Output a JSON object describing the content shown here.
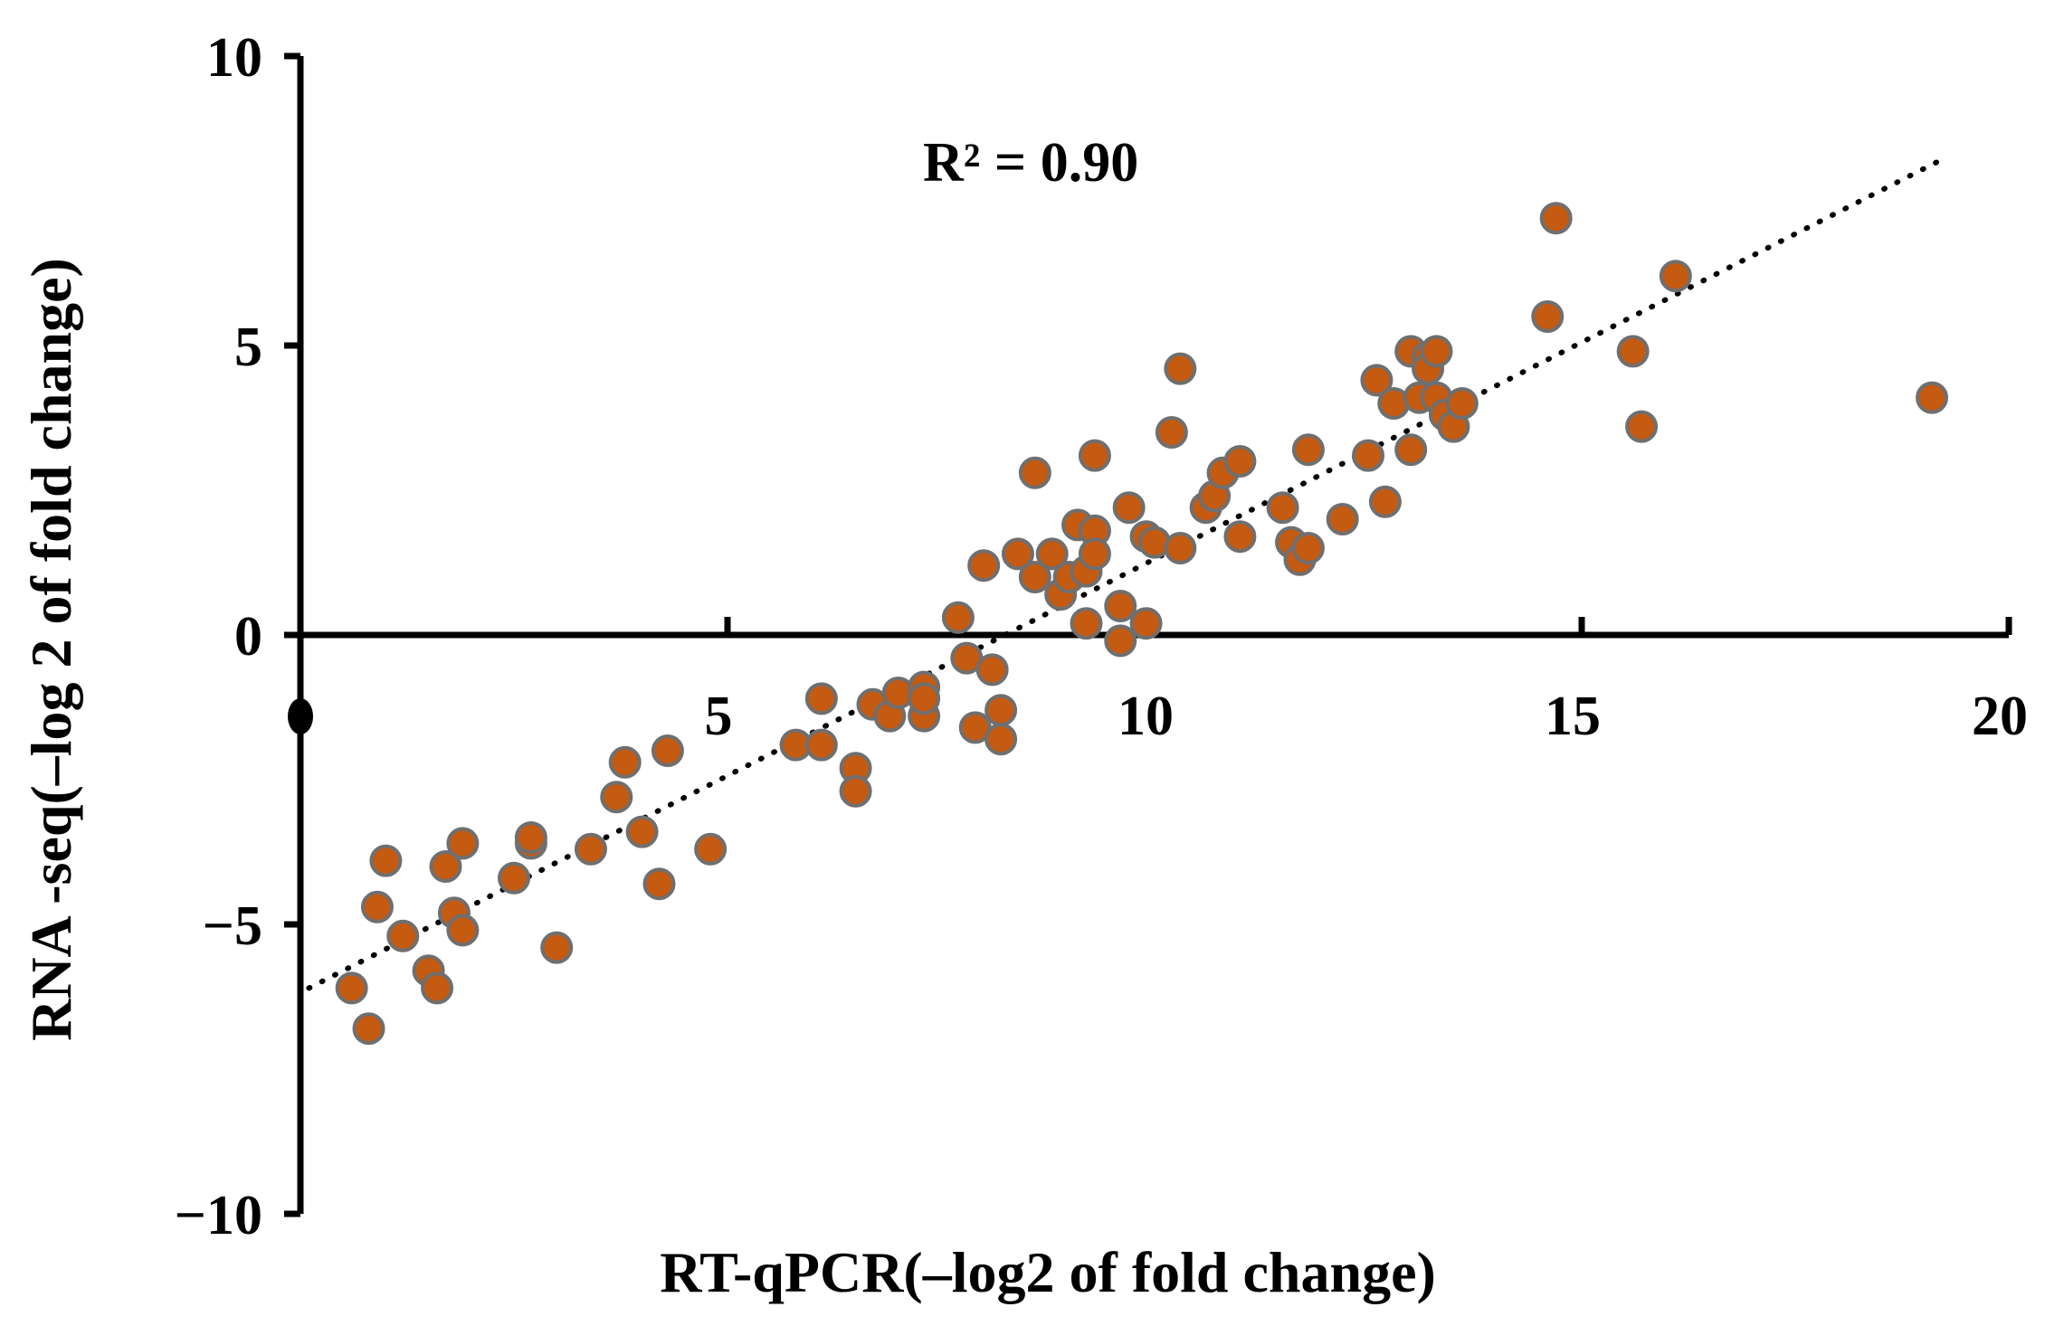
{
  "chart_data": {
    "type": "scatter",
    "xlabel": "RT-qPCR(–log2 of fold change)",
    "ylabel": "RNA -seq(–log 2 of fold change)",
    "xlim": [
      0,
      20
    ],
    "ylim": [
      -10,
      10
    ],
    "x_ticks": [
      5,
      10,
      15,
      20
    ],
    "x_tick_labels": [
      "5",
      "10",
      "15",
      "20"
    ],
    "y_ticks": [
      10,
      5,
      0,
      -5,
      -10
    ],
    "y_tick_labels": [
      "10",
      "5",
      "0",
      "−5",
      "−10"
    ],
    "annotation": "R² = 0.90",
    "grid": false,
    "marker_color": "#c55a11",
    "marker_edge": "#6f6f6f",
    "trendline": {
      "style": "dotted",
      "color": "#000000",
      "x": [
        0.1,
        19.2
      ],
      "y": [
        -6.1,
        8.2
      ]
    },
    "series": [
      {
        "points": [
          [
            0.6,
            -6.1
          ],
          [
            0.8,
            -6.8
          ],
          [
            0.9,
            -4.7
          ],
          [
            1.0,
            -3.9
          ],
          [
            1.2,
            -5.2
          ],
          [
            1.5,
            -5.8
          ],
          [
            1.6,
            -6.1
          ],
          [
            1.7,
            -4.0
          ],
          [
            1.8,
            -4.8
          ],
          [
            1.9,
            -5.1
          ],
          [
            1.9,
            -3.6
          ],
          [
            2.5,
            -4.2
          ],
          [
            2.7,
            -3.6
          ],
          [
            2.7,
            -3.5
          ],
          [
            3.0,
            -5.4
          ],
          [
            3.4,
            -3.7
          ],
          [
            3.7,
            -2.8
          ],
          [
            3.8,
            -2.2
          ],
          [
            4.0,
            -3.4
          ],
          [
            4.2,
            -4.3
          ],
          [
            4.3,
            -2.0
          ],
          [
            4.8,
            -3.7
          ],
          [
            5.8,
            -1.9
          ],
          [
            6.1,
            -1.9
          ],
          [
            6.1,
            -1.1
          ],
          [
            6.5,
            -2.3
          ],
          [
            6.5,
            -2.7
          ],
          [
            6.7,
            -1.2
          ],
          [
            6.9,
            -1.4
          ],
          [
            7.0,
            -1.0
          ],
          [
            7.3,
            -0.9
          ],
          [
            7.3,
            -1.4
          ],
          [
            7.3,
            -1.1
          ],
          [
            7.7,
            0.3
          ],
          [
            7.8,
            -0.4
          ],
          [
            7.9,
            -1.6
          ],
          [
            8.0,
            1.2
          ],
          [
            8.1,
            -0.6
          ],
          [
            8.2,
            -1.3
          ],
          [
            8.2,
            -1.8
          ],
          [
            8.4,
            1.4
          ],
          [
            8.6,
            2.8
          ],
          [
            8.6,
            1.0
          ],
          [
            8.8,
            1.4
          ],
          [
            8.9,
            0.7
          ],
          [
            9.0,
            1.0
          ],
          [
            9.1,
            1.9
          ],
          [
            9.2,
            1.1
          ],
          [
            9.2,
            0.2
          ],
          [
            9.3,
            3.1
          ],
          [
            9.3,
            1.8
          ],
          [
            9.3,
            1.4
          ],
          [
            9.6,
            -0.1
          ],
          [
            9.6,
            0.5
          ],
          [
            9.7,
            2.2
          ],
          [
            9.9,
            0.2
          ],
          [
            9.9,
            1.7
          ],
          [
            10.0,
            1.6
          ],
          [
            10.2,
            3.5
          ],
          [
            10.3,
            1.5
          ],
          [
            10.3,
            4.6
          ],
          [
            10.6,
            2.2
          ],
          [
            10.7,
            2.4
          ],
          [
            10.8,
            2.8
          ],
          [
            11.0,
            3.0
          ],
          [
            11.0,
            1.7
          ],
          [
            11.5,
            2.2
          ],
          [
            11.6,
            1.6
          ],
          [
            11.8,
            3.2
          ],
          [
            11.7,
            1.3
          ],
          [
            11.8,
            1.5
          ],
          [
            12.2,
            2.0
          ],
          [
            12.5,
            3.1
          ],
          [
            12.6,
            4.4
          ],
          [
            12.7,
            2.3
          ],
          [
            12.8,
            4.0
          ],
          [
            13.0,
            3.2
          ],
          [
            13.0,
            4.9
          ],
          [
            13.1,
            4.1
          ],
          [
            13.2,
            4.8
          ],
          [
            13.2,
            4.6
          ],
          [
            13.3,
            4.1
          ],
          [
            13.3,
            4.9
          ],
          [
            13.4,
            3.8
          ],
          [
            13.5,
            3.6
          ],
          [
            13.6,
            4.0
          ],
          [
            14.6,
            5.5
          ],
          [
            14.7,
            7.2
          ],
          [
            15.6,
            4.9
          ],
          [
            15.7,
            3.6
          ],
          [
            16.1,
            6.2
          ],
          [
            19.1,
            4.1
          ]
        ]
      }
    ]
  }
}
